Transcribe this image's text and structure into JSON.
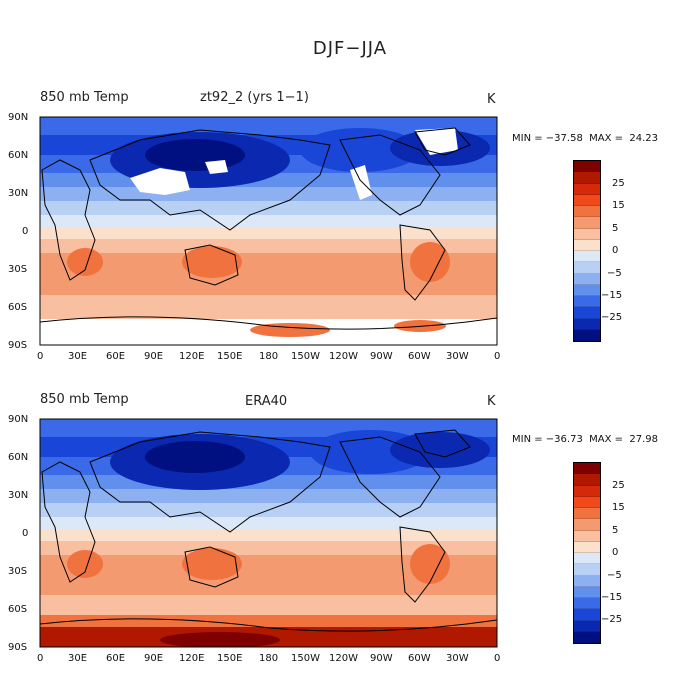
{
  "figure_title": "DJF−JJA",
  "panels": [
    {
      "id": "model",
      "field": "850 mb Temp",
      "dataset": "zt92_2 (yrs 1−1)",
      "units": "K",
      "stats": "MIN = −37.58  MAX =  24.23",
      "min": -37.58,
      "max": 24.23
    },
    {
      "id": "obs",
      "field": "850 mb Temp",
      "dataset": "ERA40",
      "units": "K",
      "stats": "MIN = −36.73  MAX =  27.98",
      "min": -36.73,
      "max": 27.98
    }
  ],
  "lon_ticks": [
    "0",
    "30E",
    "60E",
    "90E",
    "120E",
    "150E",
    "180",
    "150W",
    "120W",
    "90W",
    "60W",
    "30W",
    "0"
  ],
  "lat_ticks": [
    "90N",
    "60N",
    "30N",
    "0",
    "30S",
    "60S",
    "90S"
  ],
  "colorbar": {
    "labels": [
      "25",
      "15",
      "5",
      "0",
      "−5",
      "−15",
      "−25"
    ],
    "colors": [
      "#7f0000",
      "#b01800",
      "#d42a0a",
      "#f04a1a",
      "#f0723e",
      "#f49a70",
      "#f8c0a0",
      "#fbe0cc",
      "#dce8f8",
      "#b8d0f4",
      "#8cb0f0",
      "#6090ec",
      "#3a6ae8",
      "#1a46d8",
      "#0a28b0",
      "#001080"
    ]
  }
}
